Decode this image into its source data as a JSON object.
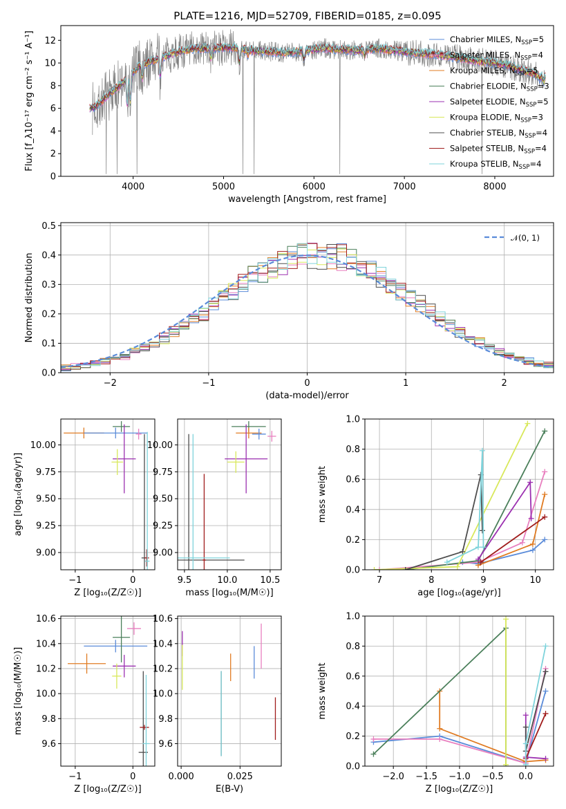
{
  "title": "PLATE=1216, MJD=52709, FIBERID=0185, z=0.095",
  "colors": {
    "chabrier_miles": "#5a8bd9",
    "salpeter_miles": "#e87fbf",
    "kroupa_miles": "#e07b22",
    "chabrier_elodie": "#4a7f5a",
    "salpeter_elodie": "#9b2fb0",
    "kroupa_elodie": "#d8e85a",
    "chabrier_stelib": "#4d4d4d",
    "salpeter_stelib": "#a01c1c",
    "kroupa_stelib": "#7ed3db",
    "data": "#808080",
    "gauss": "#5a8bd9"
  },
  "chart_data": [
    {
      "id": "spectrum",
      "type": "line",
      "xlabel": "wavelength [Angstrom, rest frame]",
      "ylabel": "Flux [f_λ10⁻¹⁷ erg cm⁻² s⁻¹ A⁻¹]",
      "xlim": [
        3200,
        8650
      ],
      "ylim": [
        0,
        13.3
      ],
      "xticks": [
        4000,
        5000,
        6000,
        7000,
        8000
      ],
      "yticks": [
        0,
        2,
        4,
        6,
        8,
        10,
        12
      ],
      "legend_position": "upper-right",
      "legend": [
        {
          "key": "chabrier_miles",
          "label": "Chabrier MILES, N",
          "sub": "SSP",
          "tail": "=5"
        },
        {
          "key": "salpeter_miles",
          "label": "Salpeter MILES, N",
          "sub": "SSP",
          "tail": "=4"
        },
        {
          "key": "kroupa_miles",
          "label": "Kroupa MILES, N",
          "sub": "SSP",
          "tail": "=5"
        },
        {
          "key": "chabrier_elodie",
          "label": "Chabrier ELODIE, N",
          "sub": "SSP",
          "tail": "=3"
        },
        {
          "key": "salpeter_elodie",
          "label": "Salpeter ELODIE, N",
          "sub": "SSP",
          "tail": "=5"
        },
        {
          "key": "kroupa_elodie",
          "label": "Kroupa ELODIE, N",
          "sub": "SSP",
          "tail": "=3"
        },
        {
          "key": "chabrier_stelib",
          "label": "Chabrier STELIB, N",
          "sub": "SSP",
          "tail": "=4"
        },
        {
          "key": "salpeter_stelib",
          "label": "Salpeter STELIB, N",
          "sub": "SSP",
          "tail": "=4"
        },
        {
          "key": "kroupa_stelib",
          "label": "Kroupa STELIB, N",
          "sub": "SSP",
          "tail": "=4"
        }
      ],
      "model_continuum": [
        [
          3550,
          6.0
        ],
        [
          3650,
          6.6
        ],
        [
          3750,
          7.4
        ],
        [
          3850,
          8.0
        ],
        [
          3950,
          8.8
        ],
        [
          4050,
          9.6
        ],
        [
          4150,
          10.0
        ],
        [
          4250,
          10.3
        ],
        [
          4350,
          10.6
        ],
        [
          4500,
          11.0
        ],
        [
          4700,
          11.3
        ],
        [
          4900,
          11.3
        ],
        [
          5100,
          11.4
        ],
        [
          5300,
          11.1
        ],
        [
          5500,
          11.0
        ],
        [
          5700,
          10.9
        ],
        [
          5900,
          11.1
        ],
        [
          6100,
          11.3
        ],
        [
          6300,
          11.2
        ],
        [
          6500,
          11.1
        ],
        [
          6700,
          11.3
        ],
        [
          6900,
          11.1
        ],
        [
          7100,
          10.9
        ],
        [
          7300,
          10.8
        ],
        [
          7500,
          10.6
        ],
        [
          7700,
          10.3
        ],
        [
          7900,
          10.1
        ],
        [
          8100,
          9.9
        ],
        [
          8300,
          9.4
        ],
        [
          8500,
          8.9
        ]
      ],
      "absorption_features": [
        [
          3934,
          6.3
        ],
        [
          3969,
          6.5
        ],
        [
          4102,
          8.6
        ],
        [
          4300,
          8.9
        ],
        [
          4861,
          10.4
        ],
        [
          5175,
          10.1
        ],
        [
          5270,
          10.7
        ],
        [
          5890,
          10.3
        ],
        [
          6563,
          10.7
        ],
        [
          8500,
          8.6
        ],
        [
          8542,
          8.4
        ],
        [
          8662,
          8.5
        ]
      ]
    },
    {
      "id": "residuals",
      "type": "histogram",
      "xlabel": "(data-model)/error",
      "ylabel": "Normed distribution",
      "xlim": [
        -2.5,
        2.5
      ],
      "ylim": [
        0,
        0.51
      ],
      "xticks": [
        -2,
        -1,
        0,
        1,
        2
      ],
      "yticks": [
        0.0,
        0.1,
        0.2,
        0.3,
        0.4,
        0.5
      ],
      "bin_width": 0.1,
      "legend_label": "𝒩(0, 1)",
      "legend_position": "upper-right"
    },
    {
      "id": "age_vs_Z",
      "type": "scatter",
      "xlabel": "Z [log₁₀(Z/Z☉)]",
      "ylabel": "age  [log₁₀(age/yr)]",
      "xlim": [
        -1.25,
        0.38
      ],
      "ylim": [
        8.84,
        10.24
      ],
      "xticks": [
        -1,
        0
      ],
      "yticks": [
        9.0,
        9.25,
        9.5,
        9.75,
        10.0
      ],
      "points": [
        {
          "key": "kroupa_miles",
          "x": -0.85,
          "y": 10.11,
          "xerr": 0.35,
          "yerr": 0.05
        },
        {
          "key": "chabrier_miles",
          "x": -0.3,
          "y": 10.11,
          "xerr": 0.55,
          "yerr": 0.05
        },
        {
          "key": "chabrier_elodie",
          "x": -0.2,
          "y": 10.17,
          "xerr": 0.15,
          "yerr": 0.05
        },
        {
          "key": "salpeter_miles",
          "x": 0.1,
          "y": 10.1,
          "xerr": 0.05,
          "yerr": 0.05
        },
        {
          "key": "salpeter_elodie",
          "x": -0.15,
          "y": 9.87,
          "xerr": 0.2,
          "yerr": 0.32
        },
        {
          "key": "kroupa_elodie",
          "x": -0.27,
          "y": 9.84,
          "xerr": 0.1,
          "yerr": 0.12
        },
        {
          "key": "chabrier_stelib",
          "x": 0.2,
          "y": 8.95,
          "xerr": 0.05,
          "yerr": 1.15
        },
        {
          "key": "salpeter_stelib",
          "x": 0.24,
          "y": 8.95,
          "xerr": 0.04,
          "yerr": 0.08
        },
        {
          "key": "kroupa_stelib",
          "x": 0.25,
          "y": 8.92,
          "xerr": 0.04,
          "yerr": 1.2
        }
      ]
    },
    {
      "id": "age_vs_mass",
      "type": "scatter",
      "xlabel": "mass [log₁₀(M/M☉)]",
      "ylabel": "",
      "xlim": [
        9.42,
        10.63
      ],
      "ylim": [
        8.84,
        10.24
      ],
      "xticks": [
        9.5,
        10.0,
        10.5
      ],
      "yticks": [
        9.0,
        9.25,
        9.5,
        9.75,
        10.0
      ],
      "points": [
        {
          "key": "chabrier_elodie",
          "x": 10.25,
          "y": 10.17,
          "xerr": 0.2,
          "yerr": 0.05
        },
        {
          "key": "kroupa_miles",
          "x": 10.25,
          "y": 10.11,
          "xerr": 0.15,
          "yerr": 0.05
        },
        {
          "key": "salpeter_miles",
          "x": 10.52,
          "y": 10.08,
          "xerr": 0.05,
          "yerr": 0.05
        },
        {
          "key": "chabrier_miles",
          "x": 10.37,
          "y": 10.1,
          "xerr": 0.08,
          "yerr": 0.05
        },
        {
          "key": "salpeter_elodie",
          "x": 10.22,
          "y": 9.87,
          "xerr": 0.25,
          "yerr": 0.32
        },
        {
          "key": "kroupa_elodie",
          "x": 10.1,
          "y": 9.84,
          "xerr": 0.1,
          "yerr": 0.1
        },
        {
          "key": "chabrier_stelib",
          "x": 9.55,
          "y": 8.93,
          "xerr": 0.65,
          "yerr": 1.17
        },
        {
          "key": "salpeter_stelib",
          "x": 9.73,
          "y": 8.93,
          "xerr": 0.02,
          "yerr": 0.8
        },
        {
          "key": "kroupa_stelib",
          "x": 9.6,
          "y": 8.95,
          "xerr": 0.43,
          "yerr": 1.15
        }
      ]
    },
    {
      "id": "weight_vs_age",
      "type": "line",
      "xlabel": "age  [log₁₀(age/yr)]",
      "ylabel": "mass weight",
      "xlim": [
        6.72,
        10.35
      ],
      "ylim": [
        0,
        1.0
      ],
      "xticks": [
        7,
        8,
        9,
        10
      ],
      "yticks": [
        0.0,
        0.2,
        0.4,
        0.6,
        0.8,
        1.0
      ],
      "series": [
        {
          "key": "chabrier_miles",
          "x": [
            8.6,
            8.9,
            9.95,
            10.18
          ],
          "y": [
            0.05,
            0.04,
            0.13,
            0.2
          ]
        },
        {
          "key": "salpeter_miles",
          "x": [
            7.0,
            8.9,
            9.75,
            10.18
          ],
          "y": [
            0.0,
            0.05,
            0.18,
            0.65
          ]
        },
        {
          "key": "kroupa_miles",
          "x": [
            8.9,
            9.95,
            10.18
          ],
          "y": [
            0.03,
            0.17,
            0.5
          ]
        },
        {
          "key": "chabrier_elodie",
          "x": [
            7.5,
            8.9,
            10.18
          ],
          "y": [
            0.0,
            0.06,
            0.92
          ]
        },
        {
          "key": "salpeter_elodie",
          "x": [
            8.9,
            9.9,
            9.92
          ],
          "y": [
            0.07,
            0.58,
            0.34
          ]
        },
        {
          "key": "kroupa_elodie",
          "x": [
            6.9,
            8.5,
            9.85
          ],
          "y": [
            0.0,
            0.02,
            0.97
          ]
        },
        {
          "key": "chabrier_stelib",
          "x": [
            7.5,
            8.6,
            8.95,
            8.98
          ],
          "y": [
            0.0,
            0.12,
            0.63,
            0.26
          ]
        },
        {
          "key": "salpeter_stelib",
          "x": [
            8.95,
            10.18
          ],
          "y": [
            0.05,
            0.35
          ]
        },
        {
          "key": "kroupa_stelib",
          "x": [
            8.3,
            8.9,
            8.98,
            9.0
          ],
          "y": [
            0.05,
            0.15,
            0.79,
            0.15
          ]
        }
      ]
    },
    {
      "id": "mass_vs_Z",
      "type": "scatter",
      "xlabel": "Z [log₁₀(Z/Z☉)]",
      "ylabel": "mass [log₁₀(M/M☉)]",
      "xlim": [
        -1.25,
        0.38
      ],
      "ylim": [
        9.42,
        10.62
      ],
      "xticks": [
        -1,
        0
      ],
      "yticks": [
        9.6,
        9.8,
        10.0,
        10.2,
        10.4,
        10.6
      ],
      "points": [
        {
          "key": "kroupa_miles",
          "x": -0.8,
          "y": 10.24,
          "xerr": 0.33,
          "yerr": 0.08
        },
        {
          "key": "chabrier_miles",
          "x": -0.3,
          "y": 10.38,
          "xerr": 0.55,
          "yerr": 0.05
        },
        {
          "key": "salpeter_miles",
          "x": 0.02,
          "y": 10.52,
          "xerr": 0.12,
          "yerr": 0.05
        },
        {
          "key": "chabrier_elodie",
          "x": -0.2,
          "y": 10.45,
          "xerr": 0.15,
          "yerr": 0.2
        },
        {
          "key": "salpeter_elodie",
          "x": -0.15,
          "y": 10.22,
          "xerr": 0.2,
          "yerr": 0.09
        },
        {
          "key": "kroupa_elodie",
          "x": -0.28,
          "y": 10.14,
          "xerr": 0.08,
          "yerr": 0.1
        },
        {
          "key": "chabrier_stelib",
          "x": 0.18,
          "y": 9.53,
          "xerr": 0.08,
          "yerr": 0.65
        },
        {
          "key": "salpeter_stelib",
          "x": 0.2,
          "y": 9.73,
          "xerr": 0.08,
          "yerr": 0.02
        },
        {
          "key": "kroupa_stelib",
          "x": 0.23,
          "y": 9.6,
          "xerr": 0.06,
          "yerr": 0.55
        }
      ]
    },
    {
      "id": "mass_vs_ebv",
      "type": "scatter",
      "xlabel": "E(B-V)",
      "ylabel": "",
      "xlim": [
        -0.0015,
        0.0425
      ],
      "ylim": [
        9.42,
        10.62
      ],
      "xticks": [
        0.0,
        0.025
      ],
      "yticks": [
        9.6,
        9.8,
        10.0,
        10.2,
        10.4,
        10.6
      ],
      "points": [
        {
          "key": "salpeter_elodie",
          "x": 0.0005,
          "y": 10.4,
          "yerr": 0.1
        },
        {
          "key": "kroupa_elodie",
          "x": 0.0005,
          "y": 10.21,
          "yerr": 0.18
        },
        {
          "key": "kroupa_miles",
          "x": 0.021,
          "y": 10.21,
          "yerr": 0.11
        },
        {
          "key": "chabrier_miles",
          "x": 0.031,
          "y": 10.25,
          "yerr": 0.13
        },
        {
          "key": "salpeter_miles",
          "x": 0.034,
          "y": 10.38,
          "yerr": 0.18
        },
        {
          "key": "chabrier_stelib",
          "x": 0.017,
          "y": 9.84,
          "yerr": 0.34
        },
        {
          "key": "kroupa_stelib",
          "x": 0.017,
          "y": 9.84,
          "yerr": 0.34
        },
        {
          "key": "salpeter_stelib",
          "x": 0.04,
          "y": 9.8,
          "yerr": 0.17
        }
      ]
    },
    {
      "id": "weight_vs_Z",
      "type": "line",
      "xlabel": "Z [log₁₀(Z/Z☉)]",
      "ylabel": "mass weight",
      "xlim": [
        -2.43,
        0.42
      ],
      "ylim": [
        0,
        1.0
      ],
      "xticks": [
        -2.0,
        -1.5,
        -1.0,
        -0.5,
        0.0
      ],
      "yticks": [
        0.0,
        0.2,
        0.4,
        0.6,
        0.8,
        1.0
      ],
      "series": [
        {
          "key": "chabrier_miles",
          "x": [
            -2.3,
            -1.3,
            0.0,
            0.3
          ],
          "y": [
            0.16,
            0.2,
            0.02,
            0.5
          ]
        },
        {
          "key": "salpeter_miles",
          "x": [
            -2.3,
            -1.3,
            0.0,
            0.3
          ],
          "y": [
            0.18,
            0.18,
            0.02,
            0.65
          ]
        },
        {
          "key": "kroupa_miles",
          "x": [
            -1.3,
            -1.3,
            0.0,
            0.3
          ],
          "y": [
            0.5,
            0.25,
            0.03,
            0.04
          ]
        },
        {
          "key": "chabrier_elodie",
          "x": [
            -2.3,
            -0.3,
            -0.3
          ],
          "y": [
            0.08,
            0.92,
            0.0
          ]
        },
        {
          "key": "salpeter_elodie",
          "x": [
            0.0,
            0.0,
            0.3
          ],
          "y": [
            0.34,
            0.06,
            0.05
          ]
        },
        {
          "key": "kroupa_elodie",
          "x": [
            -0.3,
            -0.3
          ],
          "y": [
            0.98,
            0.01
          ]
        },
        {
          "key": "chabrier_stelib",
          "x": [
            0.0,
            0.0,
            0.3
          ],
          "y": [
            0.26,
            0.1,
            0.63
          ]
        },
        {
          "key": "salpeter_stelib",
          "x": [
            0.0,
            0.3
          ],
          "y": [
            0.05,
            0.35
          ]
        },
        {
          "key": "kroupa_stelib",
          "x": [
            0.0,
            0.0,
            0.3
          ],
          "y": [
            0.01,
            0.15,
            0.8
          ]
        }
      ]
    }
  ]
}
